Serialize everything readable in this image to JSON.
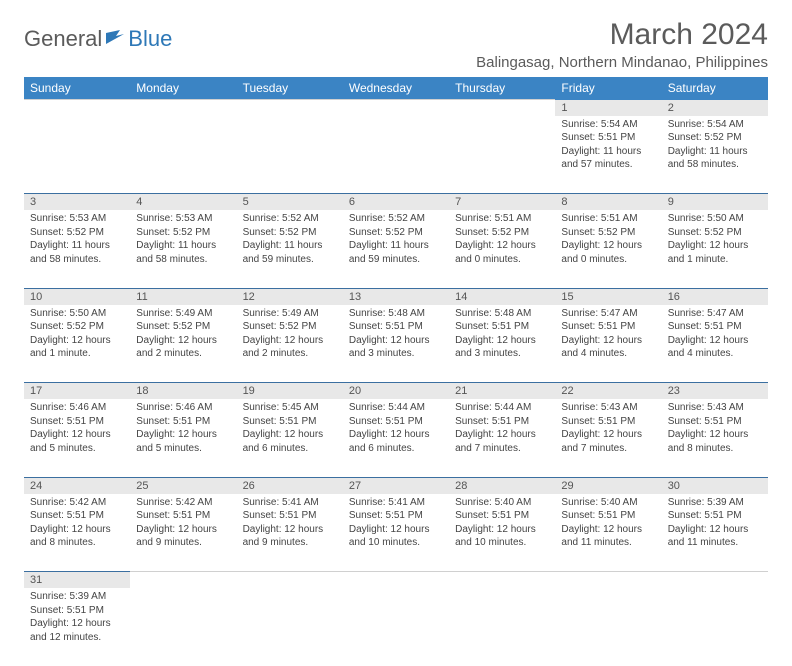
{
  "logo": {
    "part1": "General",
    "part2": "Blue"
  },
  "title": "March 2024",
  "location": "Balingasag, Northern Mindanao, Philippines",
  "colors": {
    "header_bg": "#3b84c4",
    "header_text": "#ffffff",
    "daynum_bg": "#e8e8e8",
    "row_border": "#3b6fa0",
    "text": "#444444",
    "title_text": "#5b5b5b",
    "logo_blue": "#2e78b7"
  },
  "day_headers": [
    "Sunday",
    "Monday",
    "Tuesday",
    "Wednesday",
    "Thursday",
    "Friday",
    "Saturday"
  ],
  "weeks": [
    [
      null,
      null,
      null,
      null,
      null,
      {
        "n": "1",
        "sr": "Sunrise: 5:54 AM",
        "ss": "Sunset: 5:51 PM",
        "dl": "Daylight: 11 hours and 57 minutes."
      },
      {
        "n": "2",
        "sr": "Sunrise: 5:54 AM",
        "ss": "Sunset: 5:52 PM",
        "dl": "Daylight: 11 hours and 58 minutes."
      }
    ],
    [
      {
        "n": "3",
        "sr": "Sunrise: 5:53 AM",
        "ss": "Sunset: 5:52 PM",
        "dl": "Daylight: 11 hours and 58 minutes."
      },
      {
        "n": "4",
        "sr": "Sunrise: 5:53 AM",
        "ss": "Sunset: 5:52 PM",
        "dl": "Daylight: 11 hours and 58 minutes."
      },
      {
        "n": "5",
        "sr": "Sunrise: 5:52 AM",
        "ss": "Sunset: 5:52 PM",
        "dl": "Daylight: 11 hours and 59 minutes."
      },
      {
        "n": "6",
        "sr": "Sunrise: 5:52 AM",
        "ss": "Sunset: 5:52 PM",
        "dl": "Daylight: 11 hours and 59 minutes."
      },
      {
        "n": "7",
        "sr": "Sunrise: 5:51 AM",
        "ss": "Sunset: 5:52 PM",
        "dl": "Daylight: 12 hours and 0 minutes."
      },
      {
        "n": "8",
        "sr": "Sunrise: 5:51 AM",
        "ss": "Sunset: 5:52 PM",
        "dl": "Daylight: 12 hours and 0 minutes."
      },
      {
        "n": "9",
        "sr": "Sunrise: 5:50 AM",
        "ss": "Sunset: 5:52 PM",
        "dl": "Daylight: 12 hours and 1 minute."
      }
    ],
    [
      {
        "n": "10",
        "sr": "Sunrise: 5:50 AM",
        "ss": "Sunset: 5:52 PM",
        "dl": "Daylight: 12 hours and 1 minute."
      },
      {
        "n": "11",
        "sr": "Sunrise: 5:49 AM",
        "ss": "Sunset: 5:52 PM",
        "dl": "Daylight: 12 hours and 2 minutes."
      },
      {
        "n": "12",
        "sr": "Sunrise: 5:49 AM",
        "ss": "Sunset: 5:52 PM",
        "dl": "Daylight: 12 hours and 2 minutes."
      },
      {
        "n": "13",
        "sr": "Sunrise: 5:48 AM",
        "ss": "Sunset: 5:51 PM",
        "dl": "Daylight: 12 hours and 3 minutes."
      },
      {
        "n": "14",
        "sr": "Sunrise: 5:48 AM",
        "ss": "Sunset: 5:51 PM",
        "dl": "Daylight: 12 hours and 3 minutes."
      },
      {
        "n": "15",
        "sr": "Sunrise: 5:47 AM",
        "ss": "Sunset: 5:51 PM",
        "dl": "Daylight: 12 hours and 4 minutes."
      },
      {
        "n": "16",
        "sr": "Sunrise: 5:47 AM",
        "ss": "Sunset: 5:51 PM",
        "dl": "Daylight: 12 hours and 4 minutes."
      }
    ],
    [
      {
        "n": "17",
        "sr": "Sunrise: 5:46 AM",
        "ss": "Sunset: 5:51 PM",
        "dl": "Daylight: 12 hours and 5 minutes."
      },
      {
        "n": "18",
        "sr": "Sunrise: 5:46 AM",
        "ss": "Sunset: 5:51 PM",
        "dl": "Daylight: 12 hours and 5 minutes."
      },
      {
        "n": "19",
        "sr": "Sunrise: 5:45 AM",
        "ss": "Sunset: 5:51 PM",
        "dl": "Daylight: 12 hours and 6 minutes."
      },
      {
        "n": "20",
        "sr": "Sunrise: 5:44 AM",
        "ss": "Sunset: 5:51 PM",
        "dl": "Daylight: 12 hours and 6 minutes."
      },
      {
        "n": "21",
        "sr": "Sunrise: 5:44 AM",
        "ss": "Sunset: 5:51 PM",
        "dl": "Daylight: 12 hours and 7 minutes."
      },
      {
        "n": "22",
        "sr": "Sunrise: 5:43 AM",
        "ss": "Sunset: 5:51 PM",
        "dl": "Daylight: 12 hours and 7 minutes."
      },
      {
        "n": "23",
        "sr": "Sunrise: 5:43 AM",
        "ss": "Sunset: 5:51 PM",
        "dl": "Daylight: 12 hours and 8 minutes."
      }
    ],
    [
      {
        "n": "24",
        "sr": "Sunrise: 5:42 AM",
        "ss": "Sunset: 5:51 PM",
        "dl": "Daylight: 12 hours and 8 minutes."
      },
      {
        "n": "25",
        "sr": "Sunrise: 5:42 AM",
        "ss": "Sunset: 5:51 PM",
        "dl": "Daylight: 12 hours and 9 minutes."
      },
      {
        "n": "26",
        "sr": "Sunrise: 5:41 AM",
        "ss": "Sunset: 5:51 PM",
        "dl": "Daylight: 12 hours and 9 minutes."
      },
      {
        "n": "27",
        "sr": "Sunrise: 5:41 AM",
        "ss": "Sunset: 5:51 PM",
        "dl": "Daylight: 12 hours and 10 minutes."
      },
      {
        "n": "28",
        "sr": "Sunrise: 5:40 AM",
        "ss": "Sunset: 5:51 PM",
        "dl": "Daylight: 12 hours and 10 minutes."
      },
      {
        "n": "29",
        "sr": "Sunrise: 5:40 AM",
        "ss": "Sunset: 5:51 PM",
        "dl": "Daylight: 12 hours and 11 minutes."
      },
      {
        "n": "30",
        "sr": "Sunrise: 5:39 AM",
        "ss": "Sunset: 5:51 PM",
        "dl": "Daylight: 12 hours and 11 minutes."
      }
    ],
    [
      {
        "n": "31",
        "sr": "Sunrise: 5:39 AM",
        "ss": "Sunset: 5:51 PM",
        "dl": "Daylight: 12 hours and 12 minutes."
      },
      null,
      null,
      null,
      null,
      null,
      null
    ]
  ]
}
